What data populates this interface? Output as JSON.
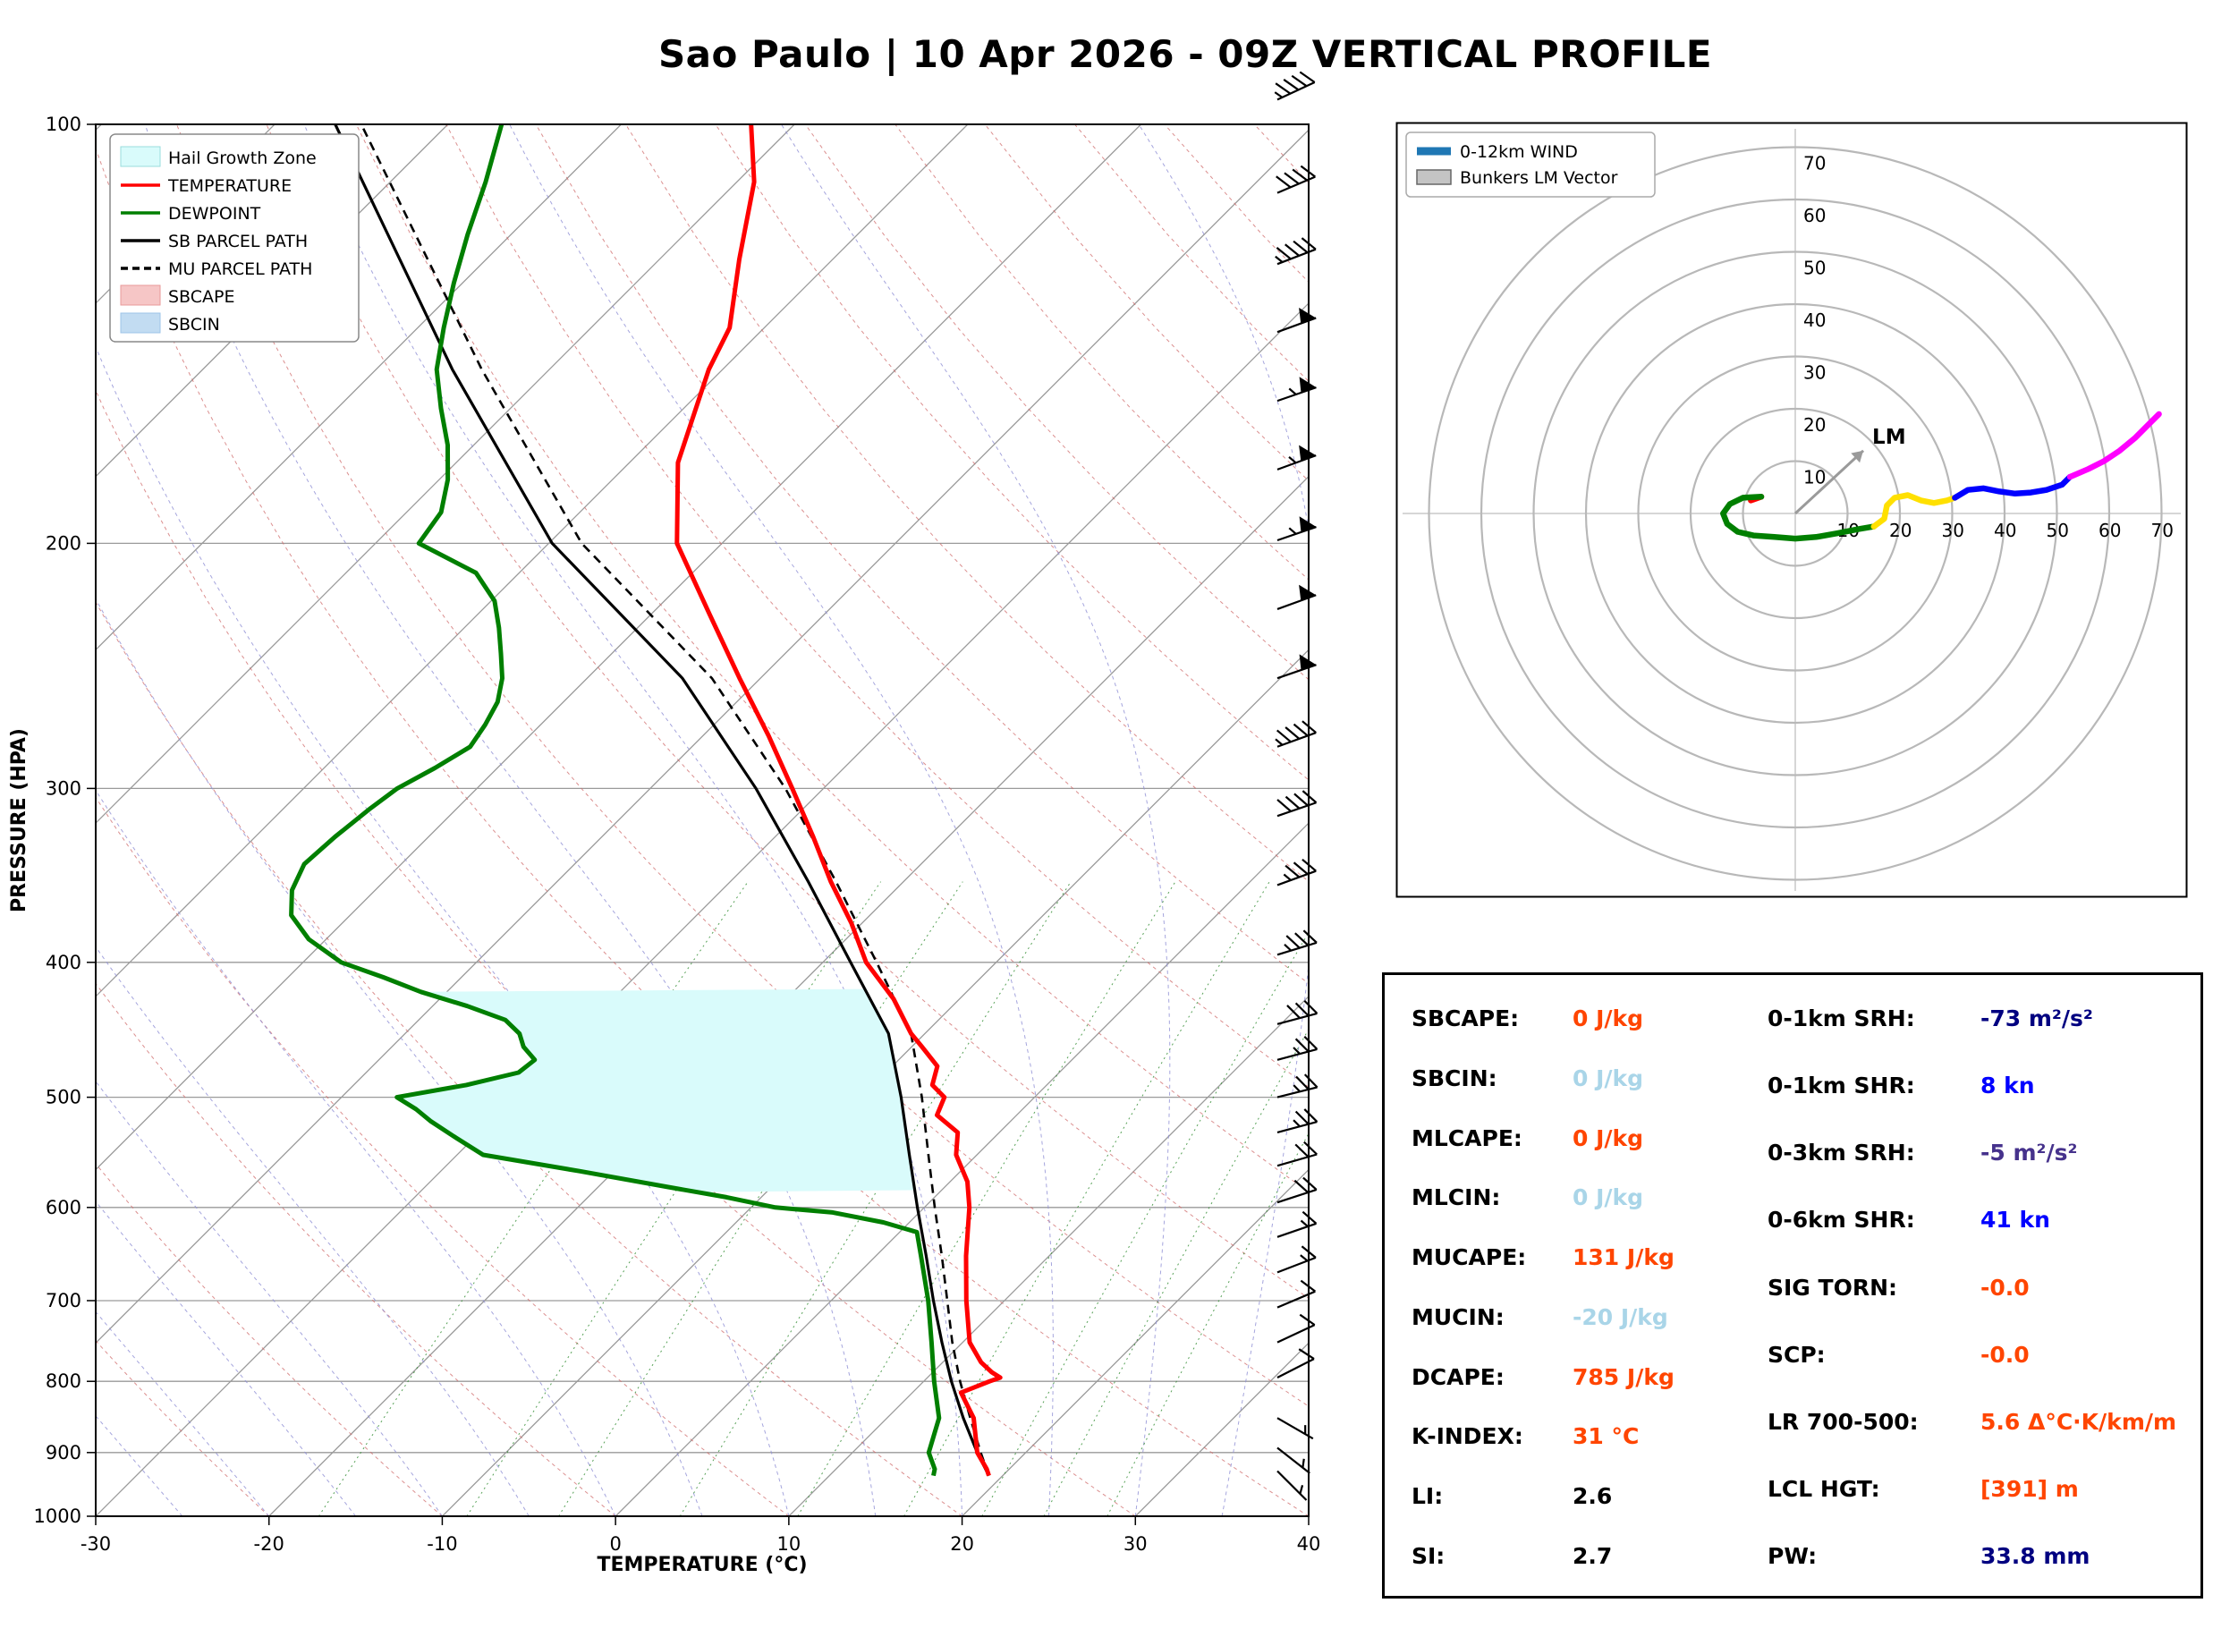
{
  "title": "Sao Paulo | 10 Apr 2026 - 09Z VERTICAL PROFILE",
  "skewt": {
    "xlabel": "TEMPERATURE (°C)",
    "ylabel": "PRESSURE (HPA)",
    "x_ticks": [
      -30,
      -20,
      -10,
      0,
      10,
      20,
      30,
      40
    ],
    "y_ticks": [
      100,
      200,
      300,
      400,
      500,
      600,
      700,
      800,
      900,
      1000
    ],
    "legend": [
      {
        "label": "Hail Growth Zone",
        "type": "patch",
        "color": "#d9fbfb",
        "edge": "#9adddd"
      },
      {
        "label": "TEMPERATURE",
        "type": "line",
        "color": "#ff0000"
      },
      {
        "label": "DEWPOINT",
        "type": "line",
        "color": "#007f00"
      },
      {
        "label": "SB PARCEL PATH",
        "type": "line",
        "color": "#000000"
      },
      {
        "label": "MU PARCEL PATH",
        "type": "dash",
        "color": "#000000"
      },
      {
        "label": "SBCAPE",
        "type": "patch",
        "color": "#f6c6c6",
        "edge": "#e89a9a"
      },
      {
        "label": "SBCIN",
        "type": "patch",
        "color": "#c2dcf2",
        "edge": "#9ec4e8"
      }
    ]
  },
  "chart_data": {
    "type": "skewt-sounding",
    "pressure_axis_hpa": [
      100,
      1000
    ],
    "temperature_axis_c": [
      -30,
      40
    ],
    "temperature_profile_p_t": [
      [
        935,
        19.2
      ],
      [
        925,
        18.7
      ],
      [
        900,
        17.2
      ],
      [
        850,
        15.0
      ],
      [
        815,
        12.8
      ],
      [
        800,
        13.8
      ],
      [
        795,
        14.2
      ],
      [
        788,
        13.4
      ],
      [
        775,
        12.2
      ],
      [
        750,
        10.4
      ],
      [
        700,
        7.8
      ],
      [
        650,
        5.2
      ],
      [
        600,
        2.6
      ],
      [
        575,
        1.0
      ],
      [
        550,
        -1.2
      ],
      [
        530,
        -2.4
      ],
      [
        515,
        -4.6
      ],
      [
        500,
        -5.2
      ],
      [
        490,
        -6.6
      ],
      [
        475,
        -7.4
      ],
      [
        460,
        -9.4
      ],
      [
        450,
        -10.8
      ],
      [
        425,
        -13.8
      ],
      [
        400,
        -17.5
      ],
      [
        375,
        -20.6
      ],
      [
        350,
        -24.2
      ],
      [
        325,
        -27.8
      ],
      [
        300,
        -31.8
      ],
      [
        275,
        -36.2
      ],
      [
        250,
        -41.2
      ],
      [
        225,
        -46.6
      ],
      [
        200,
        -52.6
      ],
      [
        175,
        -57.2
      ],
      [
        150,
        -60.8
      ],
      [
        140,
        -62.0
      ],
      [
        125,
        -65.4
      ],
      [
        110,
        -69.0
      ],
      [
        100,
        -72.5
      ]
    ],
    "dewpoint_profile_p_t": [
      [
        935,
        16.0
      ],
      [
        925,
        15.7
      ],
      [
        900,
        14.4
      ],
      [
        850,
        13.0
      ],
      [
        800,
        10.6
      ],
      [
        750,
        8.2
      ],
      [
        700,
        5.6
      ],
      [
        650,
        2.6
      ],
      [
        625,
        1.0
      ],
      [
        615,
        -1.5
      ],
      [
        605,
        -5.0
      ],
      [
        600,
        -8.6
      ],
      [
        590,
        -12.0
      ],
      [
        580,
        -16.0
      ],
      [
        565,
        -22.0
      ],
      [
        550,
        -28.5
      ],
      [
        535,
        -31.0
      ],
      [
        520,
        -33.5
      ],
      [
        510,
        -35.0
      ],
      [
        500,
        -36.8
      ],
      [
        490,
        -33.5
      ],
      [
        480,
        -31.2
      ],
      [
        470,
        -31.0
      ],
      [
        460,
        -32.4
      ],
      [
        450,
        -33.4
      ],
      [
        440,
        -35.0
      ],
      [
        430,
        -38.0
      ],
      [
        420,
        -41.5
      ],
      [
        410,
        -44.5
      ],
      [
        400,
        -47.8
      ],
      [
        385,
        -51.0
      ],
      [
        370,
        -53.4
      ],
      [
        355,
        -54.8
      ],
      [
        340,
        -55.6
      ],
      [
        325,
        -55.4
      ],
      [
        310,
        -55.0
      ],
      [
        300,
        -54.6
      ],
      [
        290,
        -53.6
      ],
      [
        280,
        -52.8
      ],
      [
        270,
        -53.2
      ],
      [
        260,
        -53.8
      ],
      [
        250,
        -54.9
      ],
      [
        240,
        -56.4
      ],
      [
        230,
        -58.0
      ],
      [
        220,
        -59.8
      ],
      [
        210,
        -62.5
      ],
      [
        200,
        -67.5
      ],
      [
        190,
        -68.0
      ],
      [
        180,
        -69.5
      ],
      [
        170,
        -71.5
      ],
      [
        160,
        -74.0
      ],
      [
        150,
        -76.5
      ],
      [
        140,
        -78.5
      ],
      [
        130,
        -80.5
      ],
      [
        120,
        -82.5
      ],
      [
        110,
        -84.5
      ],
      [
        100,
        -86.9
      ]
    ],
    "sb_parcel_path_p_t": [
      [
        935,
        19.2
      ],
      [
        900,
        17.2
      ],
      [
        850,
        14.4
      ],
      [
        800,
        11.6
      ],
      [
        750,
        8.8
      ],
      [
        700,
        5.9
      ],
      [
        650,
        2.9
      ],
      [
        600,
        -0.4
      ],
      [
        550,
        -3.9
      ],
      [
        500,
        -7.7
      ],
      [
        450,
        -12.1
      ],
      [
        400,
        -18.4
      ],
      [
        350,
        -25.5
      ],
      [
        300,
        -33.9
      ],
      [
        250,
        -44.5
      ],
      [
        200,
        -59.8
      ],
      [
        150,
        -75.6
      ],
      [
        100,
        -96.5
      ]
    ],
    "mu_parcel_path_p_t": [
      [
        935,
        19.2
      ],
      [
        900,
        17.4
      ],
      [
        850,
        14.8
      ],
      [
        800,
        12.1
      ],
      [
        750,
        9.4
      ],
      [
        700,
        6.7
      ],
      [
        650,
        3.8
      ],
      [
        600,
        0.6
      ],
      [
        550,
        -2.8
      ],
      [
        500,
        -6.5
      ],
      [
        450,
        -10.8
      ],
      [
        400,
        -16.9
      ],
      [
        350,
        -23.9
      ],
      [
        300,
        -32.2
      ],
      [
        250,
        -42.8
      ],
      [
        200,
        -58.1
      ],
      [
        150,
        -73.9
      ],
      [
        100,
        -95.0
      ]
    ],
    "hail_growth_zone_hpa": {
      "top": 418,
      "bottom": 585
    },
    "wind_barbs": [
      {
        "p": 96,
        "kn": 45,
        "from_deg": 245
      },
      {
        "p": 112,
        "kn": 40,
        "from_deg": 247
      },
      {
        "p": 126,
        "kn": 45,
        "from_deg": 249
      },
      {
        "p": 141,
        "kn": 50,
        "from_deg": 250
      },
      {
        "p": 158,
        "kn": 55,
        "from_deg": 251
      },
      {
        "p": 177,
        "kn": 55,
        "from_deg": 250
      },
      {
        "p": 199,
        "kn": 55,
        "from_deg": 251
      },
      {
        "p": 223,
        "kn": 52,
        "from_deg": 250
      },
      {
        "p": 250,
        "kn": 50,
        "from_deg": 251
      },
      {
        "p": 280,
        "kn": 48,
        "from_deg": 250
      },
      {
        "p": 314,
        "kn": 42,
        "from_deg": 251
      },
      {
        "p": 352,
        "kn": 38,
        "from_deg": 250
      },
      {
        "p": 395,
        "kn": 35,
        "from_deg": 253
      },
      {
        "p": 443,
        "kn": 30,
        "from_deg": 255
      },
      {
        "p": 470,
        "kn": 28,
        "from_deg": 255
      },
      {
        "p": 500,
        "kn": 27,
        "from_deg": 256
      },
      {
        "p": 530,
        "kn": 25,
        "from_deg": 255
      },
      {
        "p": 560,
        "kn": 23,
        "from_deg": 254
      },
      {
        "p": 595,
        "kn": 20,
        "from_deg": 252
      },
      {
        "p": 630,
        "kn": 18,
        "from_deg": 251
      },
      {
        "p": 668,
        "kn": 16,
        "from_deg": 249
      },
      {
        "p": 708,
        "kn": 14,
        "from_deg": 247
      },
      {
        "p": 750,
        "kn": 12,
        "from_deg": 245
      },
      {
        "p": 795,
        "kn": 10,
        "from_deg": 243
      },
      {
        "p": 850,
        "kn": 8,
        "from_deg": 300
      },
      {
        "p": 893,
        "kn": 6,
        "from_deg": 308
      },
      {
        "p": 928,
        "kn": 5,
        "from_deg": 315
      }
    ],
    "hodograph_rings_kn": [
      10,
      20,
      30,
      40,
      50,
      60,
      70
    ],
    "hodograph_segments": [
      {
        "color": "#ff0000",
        "points": [
          [
            -8.5,
            2.5
          ],
          [
            -6.5,
            3.2
          ]
        ]
      },
      {
        "color": "#007f00",
        "points": [
          [
            -6.5,
            3.2
          ],
          [
            -10,
            3
          ],
          [
            -12.5,
            1.8
          ],
          [
            -13.8,
            0
          ],
          [
            -13,
            -2
          ],
          [
            -11,
            -3.5
          ],
          [
            -8,
            -4.2
          ],
          [
            -4,
            -4.5
          ],
          [
            0,
            -4.8
          ],
          [
            4,
            -4.5
          ],
          [
            8,
            -3.8
          ],
          [
            12,
            -3
          ],
          [
            15,
            -2.5
          ]
        ]
      },
      {
        "color": "#ffe000",
        "points": [
          [
            15,
            -2.5
          ],
          [
            17,
            -1
          ],
          [
            17.5,
            1.5
          ],
          [
            19,
            3
          ],
          [
            21.5,
            3.5
          ],
          [
            24,
            2.5
          ],
          [
            26.5,
            2
          ],
          [
            29,
            2.5
          ],
          [
            30.5,
            3
          ]
        ]
      },
      {
        "color": "#0000ff",
        "points": [
          [
            30.5,
            3
          ],
          [
            33,
            4.5
          ],
          [
            36,
            4.8
          ],
          [
            39,
            4.2
          ],
          [
            42,
            3.8
          ],
          [
            45,
            4
          ],
          [
            48,
            4.5
          ],
          [
            51,
            5.5
          ],
          [
            52.5,
            7
          ]
        ]
      },
      {
        "color": "#ff00ff",
        "points": [
          [
            52.5,
            7
          ],
          [
            56,
            8.5
          ],
          [
            59,
            10
          ],
          [
            62,
            12
          ],
          [
            65,
            14.5
          ],
          [
            67.5,
            17
          ],
          [
            69.5,
            19
          ]
        ]
      }
    ],
    "bunkers_lm_vector_uv": [
      13,
      12
    ]
  },
  "hodograph": {
    "legend": [
      {
        "label": "0-12km WIND",
        "color": "#1f77b4"
      },
      {
        "label": "Bunkers LM Vector",
        "color": "#c4c4c4"
      }
    ],
    "ring_labels": [
      10,
      20,
      30,
      40,
      50,
      60,
      70
    ],
    "lm_label": "LM"
  },
  "stats": {
    "left": [
      {
        "label": "SBCAPE:",
        "value": "0 J/kg",
        "color": "#ff4500"
      },
      {
        "label": "SBCIN:",
        "value": "0 J/kg",
        "color": "#a9d5e8"
      },
      {
        "label": "MLCAPE:",
        "value": "0 J/kg",
        "color": "#ff4500"
      },
      {
        "label": "MLCIN:",
        "value": "0 J/kg",
        "color": "#a9d5e8"
      },
      {
        "label": "MUCAPE:",
        "value": "131 J/kg",
        "color": "#ff4500"
      },
      {
        "label": "MUCIN:",
        "value": "-20 J/kg",
        "color": "#a9d5e8"
      },
      {
        "label": "DCAPE:",
        "value": "785 J/kg",
        "color": "#ff4500"
      },
      {
        "label": "K-INDEX:",
        "value": "31 °C",
        "color": "#ff4500"
      },
      {
        "label": "LI:",
        "value": "2.6",
        "color": "#000000"
      },
      {
        "label": "SI:",
        "value": "2.7",
        "color": "#000000"
      }
    ],
    "right": [
      {
        "label": "0-1km SRH:",
        "value": "-73 m²/s²",
        "color": "#000080"
      },
      {
        "label": "0-1km SHR:",
        "value": "8 kn",
        "color": "#0000ff"
      },
      {
        "label": "0-3km SRH:",
        "value": "-5 m²/s²",
        "color": "#46328c"
      },
      {
        "label": "0-6km SHR:",
        "value": "41 kn",
        "color": "#0000ff"
      },
      {
        "label": "SIG TORN:",
        "value": "-0.0",
        "color": "#ff4500"
      },
      {
        "label": "SCP:",
        "value": "-0.0",
        "color": "#ff4500"
      },
      {
        "label": "LR 700-500:",
        "value": "5.6 Δ°C·K/km/m",
        "color": "#ff4500"
      },
      {
        "label": "LCL HGT:",
        "value": "[391] m",
        "color": "#ff4500"
      },
      {
        "label": "PW:",
        "value": "33.8 mm",
        "color": "#000080"
      }
    ]
  }
}
